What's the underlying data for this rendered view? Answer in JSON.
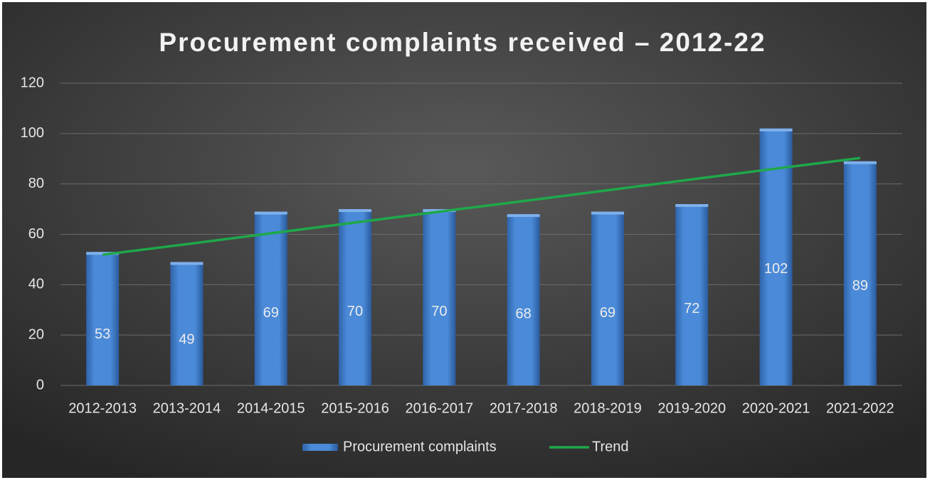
{
  "chart_data": {
    "type": "bar",
    "title": "Procurement complaints received – 2012-22",
    "categories": [
      "2012-2013",
      "2013-2014",
      "2014-2015",
      "2015-2016",
      "2016-2017",
      "2017-2018",
      "2018-2019",
      "2019-2020",
      "2020-2021",
      "2021-2022"
    ],
    "series": [
      {
        "name": "Procurement complaints",
        "type": "bar",
        "color": "#3f7fd0",
        "values": [
          53,
          49,
          69,
          70,
          70,
          68,
          69,
          72,
          102,
          89
        ]
      },
      {
        "name": "Trend",
        "type": "line",
        "color": "#1fa84a",
        "values": [
          51.9,
          56.1,
          60.4,
          64.7,
          69.0,
          73.2,
          77.5,
          81.8,
          86.1,
          90.3
        ]
      }
    ],
    "ylim": [
      0,
      120
    ],
    "yticks": [
      0,
      20,
      40,
      60,
      80,
      100,
      120
    ],
    "grid": true,
    "legend": "bottom"
  }
}
